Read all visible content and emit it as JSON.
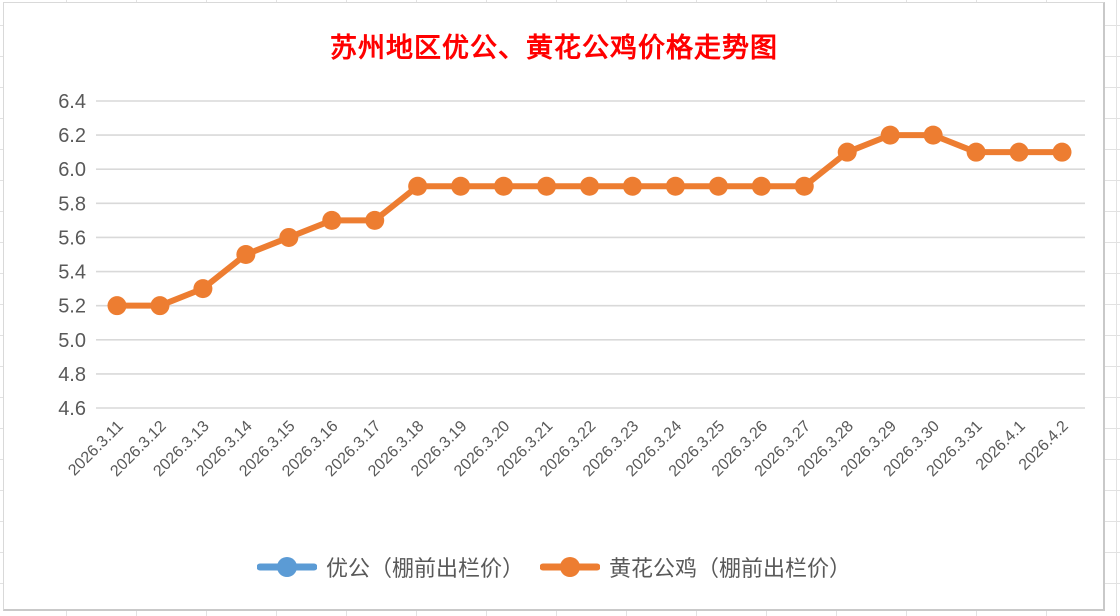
{
  "chart": {
    "title_color": "#FF0000",
    "axis_text_color": "#595959",
    "gridline_color": "#D9D9D9",
    "legend_text_color": "#595959",
    "canvas_border_color": "#D9D9D9"
  },
  "chart_data": {
    "type": "line",
    "title": "苏州地区优公、黄花公鸡价格走势图",
    "categories": [
      "2026.3.11",
      "2026.3.12",
      "2026.3.13",
      "2026.3.14",
      "2026.3.15",
      "2026.3.16",
      "2026.3.17",
      "2026.3.18",
      "2026.3.19",
      "2026.3.20",
      "2026.3.21",
      "2026.3.22",
      "2026.3.23",
      "2026.3.24",
      "2026.3.25",
      "2026.3.26",
      "2026.3.27",
      "2026.3.28",
      "2026.3.29",
      "2026.3.30",
      "2026.3.31",
      "2026.4.1",
      "2026.4.2"
    ],
    "series": [
      {
        "name": "优公（棚前出栏价）",
        "color": "#5B9BD5",
        "values": []
      },
      {
        "name": "黄花公鸡（棚前出栏价）",
        "color": "#ED7D31",
        "values": [
          5.2,
          5.2,
          5.3,
          5.5,
          5.6,
          5.7,
          5.7,
          5.9,
          5.9,
          5.9,
          5.9,
          5.9,
          5.9,
          5.9,
          5.9,
          5.9,
          5.9,
          6.1,
          6.2,
          6.2,
          6.1,
          6.1,
          6.1
        ]
      }
    ],
    "ylim": [
      4.6,
      6.4
    ],
    "ytick_step": 0.2,
    "ytick_labels": [
      "4.6",
      "4.8",
      "5.0",
      "5.2",
      "5.4",
      "5.6",
      "5.8",
      "6.0",
      "6.2",
      "6.4"
    ],
    "grid": true,
    "legend_position": "bottom",
    "marker": "circle"
  }
}
